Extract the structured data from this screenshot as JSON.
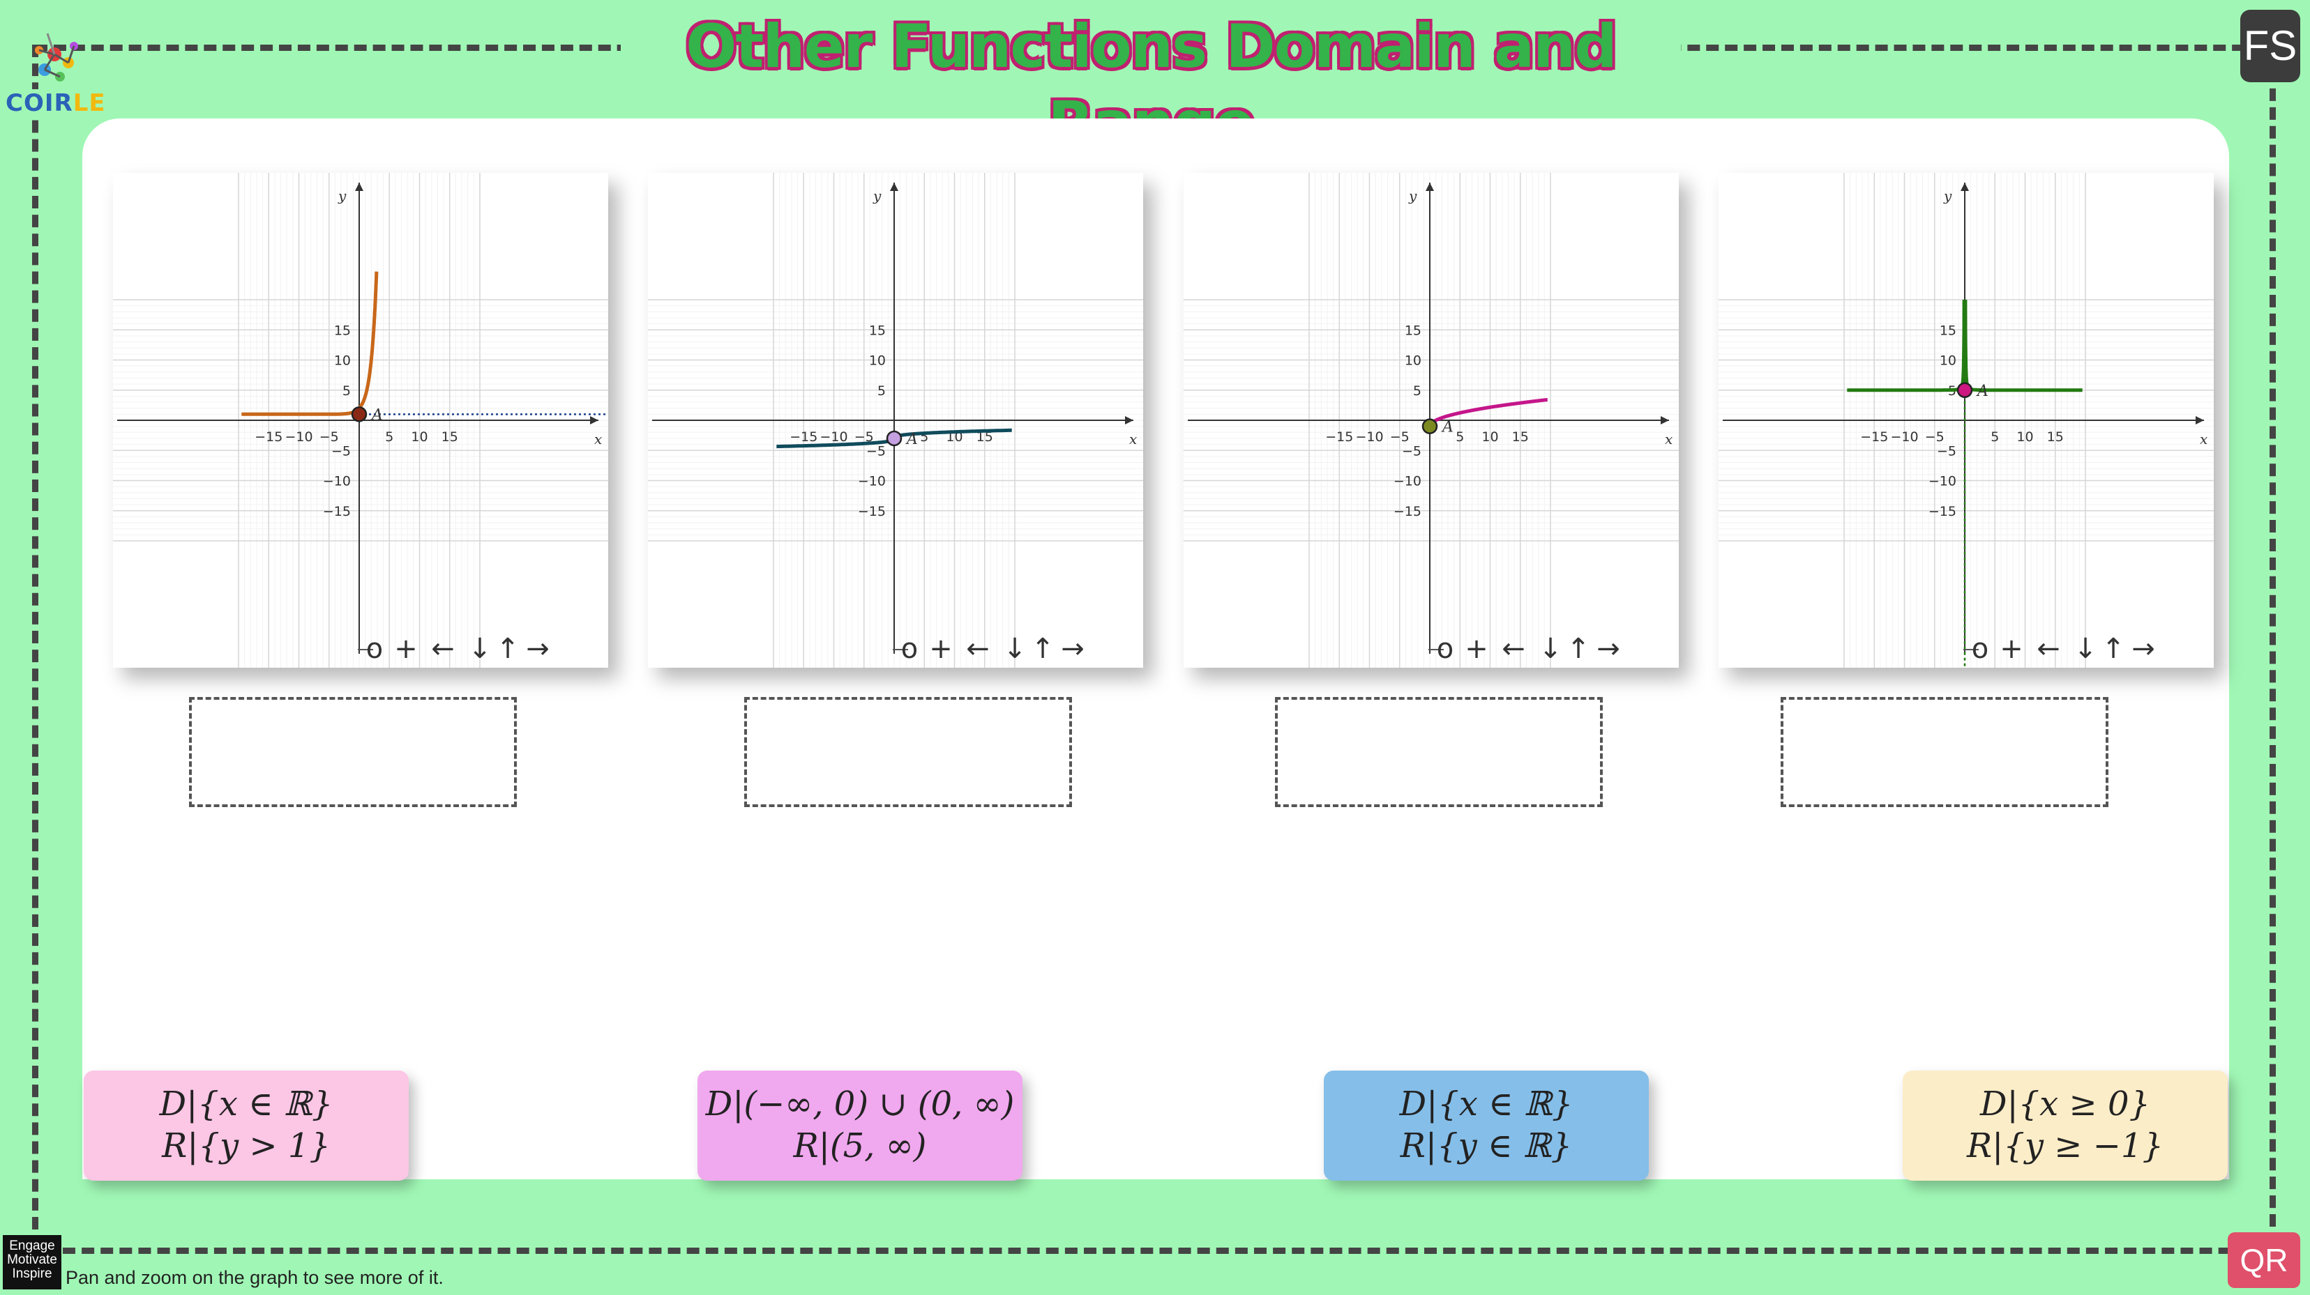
{
  "title": "Other Functions Domain and Range",
  "logo": {
    "text_main": "COIR",
    "text_accent": "LE"
  },
  "buttons": {
    "fullscreen": "FS",
    "qr": "QR"
  },
  "footer": {
    "badge": [
      "Engage",
      "Motivate",
      "Inspire"
    ],
    "hint": "Pan and zoom on the graph to see more of it."
  },
  "graph_common": {
    "axis_x": "x",
    "axis_y": "y",
    "x_ticks": [
      "−15",
      "−10",
      "−5",
      "5",
      "10",
      "15"
    ],
    "y_ticks": [
      "15",
      "10",
      "5",
      "−5",
      "−10",
      "−15"
    ],
    "toolbar": [
      "o",
      "+",
      "←",
      "↓",
      "↑",
      "→"
    ]
  },
  "graphs": [
    {
      "point_label": "A",
      "color": "#c8671a",
      "point_color": "#8a2a16",
      "kind": "exponential",
      "point": [
        0,
        1
      ],
      "asymptote": "y = 1"
    },
    {
      "point_label": "A",
      "color": "#0f4b5c",
      "point_color": "#c5a0e0",
      "kind": "cuberoot",
      "point": [
        0,
        -3
      ]
    },
    {
      "point_label": "A",
      "color": "#c4168a",
      "point_color": "#7d8a22",
      "kind": "sqrt",
      "point": [
        0,
        -1
      ]
    },
    {
      "point_label": "A",
      "color": "#237a12",
      "point_color": "#cc1880",
      "kind": "reciprocal_square",
      "point": [
        0,
        5
      ],
      "asymptote": "x = 0"
    }
  ],
  "answers": [
    {
      "line1": "D|{x ∈ ℝ}",
      "line2": "R|{y > 1}",
      "color": "#fcc6e5"
    },
    {
      "line1": "D|(−∞, 0) ∪ (0,  ∞)",
      "line2": "R|(5,  ∞)",
      "color": "#f0a8ee"
    },
    {
      "line1": "D|{x ∈ ℝ}",
      "line2": "R|{y ∈ ℝ}",
      "color": "#85bee9"
    },
    {
      "line1": "D|{x ≥ 0}",
      "line2": "R|{y ≥ −1}",
      "color": "#fcedc9"
    }
  ]
}
